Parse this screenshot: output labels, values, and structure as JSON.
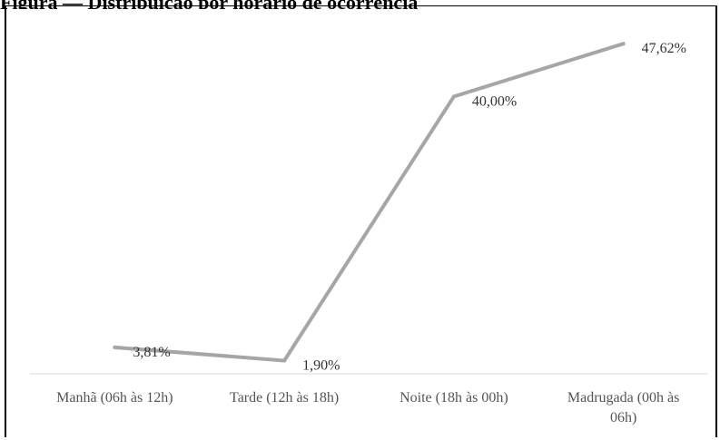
{
  "caption": "Figura — Distribuição por horário de ocorrência",
  "chart_data": {
    "type": "line",
    "title": "",
    "xlabel": "",
    "ylabel": "",
    "categories": [
      [
        "Manhã (06h às 12h)"
      ],
      [
        "Tarde (12h às 18h)"
      ],
      [
        "Noite (18h às 00h)"
      ],
      [
        "Madrugada (00h às",
        "06h)"
      ]
    ],
    "series": [
      {
        "values": [
          3.81,
          1.9,
          40.0,
          47.62
        ],
        "labels": [
          "3,81%",
          "1,90%",
          "40,00%",
          "47,62%"
        ],
        "color": "#a6a6a6"
      }
    ],
    "ylim": [
      0,
      50
    ],
    "grid": false,
    "legend": "none"
  }
}
